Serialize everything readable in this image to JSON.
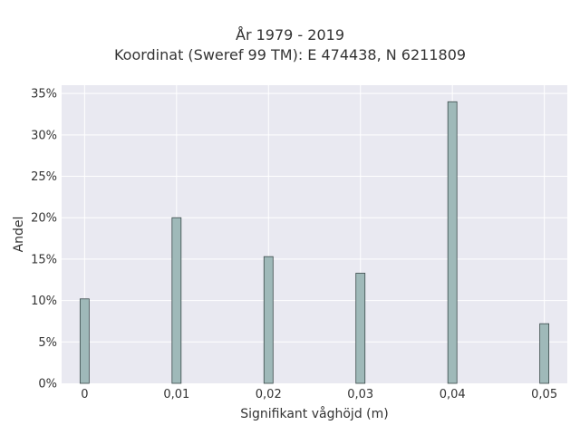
{
  "chart_data": {
    "type": "bar",
    "title": "År 1979 - 2019",
    "subtitle": "Koordinat (Sweref 99 TM): E 474438, N 6211809",
    "xlabel": "Signifikant våghöjd (m)",
    "ylabel": "Andel",
    "x": [
      0,
      0.01,
      0.02,
      0.03,
      0.04,
      0.05
    ],
    "values": [
      10.2,
      20.0,
      15.3,
      13.3,
      34.0,
      7.2
    ],
    "xlim": [
      -0.0025,
      0.0525
    ],
    "ylim": [
      0,
      36
    ],
    "x_ticks": [
      {
        "value": 0,
        "label": "0"
      },
      {
        "value": 0.01,
        "label": "0,01"
      },
      {
        "value": 0.02,
        "label": "0,02"
      },
      {
        "value": 0.03,
        "label": "0,03"
      },
      {
        "value": 0.04,
        "label": "0,04"
      },
      {
        "value": 0.05,
        "label": "0,05"
      }
    ],
    "y_ticks": [
      {
        "value": 0,
        "label": "0%"
      },
      {
        "value": 5,
        "label": "5%"
      },
      {
        "value": 10,
        "label": "10%"
      },
      {
        "value": 15,
        "label": "15%"
      },
      {
        "value": 20,
        "label": "20%"
      },
      {
        "value": 25,
        "label": "25%"
      },
      {
        "value": 30,
        "label": "30%"
      },
      {
        "value": 35,
        "label": "35%"
      }
    ],
    "grid": true,
    "colors": {
      "bar": "#9fb9b9",
      "bar_edge": "#3a4a4a",
      "plot_bg": "#e9e9f1",
      "grid": "#ffffff"
    }
  }
}
